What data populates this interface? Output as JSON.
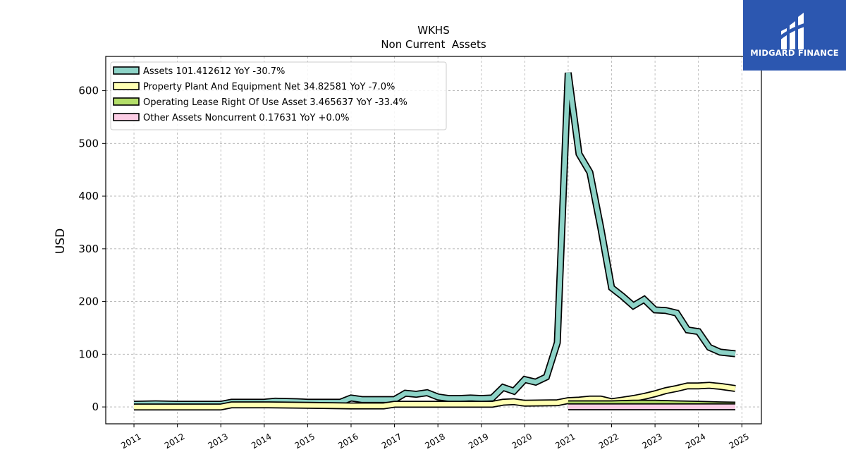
{
  "logo": {
    "text": "MIDGARD FINANCE",
    "background": "#2c57b0"
  },
  "chart_data": {
    "type": "area",
    "title": "WKHS",
    "subtitle": "Non Current  Assets",
    "xlabel": "",
    "ylabel": "USD",
    "xlim": [
      2010.35,
      2025.45
    ],
    "ylim": [
      -32,
      665
    ],
    "x_ticks": [
      "2011",
      "2012",
      "2013",
      "2014",
      "2015",
      "2016",
      "2017",
      "2018",
      "2019",
      "2020",
      "2021",
      "2022",
      "2023",
      "2024",
      "2025"
    ],
    "y_ticks": [
      0,
      100,
      200,
      300,
      400,
      500,
      600
    ],
    "grid": true,
    "legend_position": "top-left",
    "series": [
      {
        "name": "Assets  101.412612 YoY -30.7%",
        "color": "#8dd3c7",
        "points": [
          [
            2011.0,
            5
          ],
          [
            2011.5,
            6
          ],
          [
            2012.0,
            5
          ],
          [
            2012.5,
            5
          ],
          [
            2013.0,
            5
          ],
          [
            2013.25,
            9
          ],
          [
            2013.75,
            9
          ],
          [
            2014.0,
            9
          ],
          [
            2014.25,
            11
          ],
          [
            2014.75,
            10
          ],
          [
            2015.0,
            9
          ],
          [
            2015.5,
            9
          ],
          [
            2015.75,
            9
          ],
          [
            2016.0,
            17
          ],
          [
            2016.25,
            14
          ],
          [
            2016.75,
            14
          ],
          [
            2017.0,
            14
          ],
          [
            2017.25,
            26
          ],
          [
            2017.5,
            24
          ],
          [
            2017.75,
            27
          ],
          [
            2018.0,
            19
          ],
          [
            2018.25,
            16
          ],
          [
            2018.5,
            16
          ],
          [
            2018.75,
            17
          ],
          [
            2019.0,
            16
          ],
          [
            2019.25,
            17
          ],
          [
            2019.5,
            37
          ],
          [
            2019.75,
            30
          ],
          [
            2020.0,
            52
          ],
          [
            2020.25,
            47
          ],
          [
            2020.5,
            57
          ],
          [
            2020.75,
            122
          ],
          [
            2021.0,
            634
          ],
          [
            2021.25,
            480
          ],
          [
            2021.5,
            445
          ],
          [
            2021.75,
            340
          ],
          [
            2022.0,
            226
          ],
          [
            2022.25,
            210
          ],
          [
            2022.5,
            192
          ],
          [
            2022.75,
            204
          ],
          [
            2023.0,
            184
          ],
          [
            2023.25,
            183
          ],
          [
            2023.5,
            178
          ],
          [
            2023.75,
            146
          ],
          [
            2024.0,
            143
          ],
          [
            2024.25,
            113
          ],
          [
            2024.5,
            104
          ],
          [
            2024.85,
            101
          ]
        ]
      },
      {
        "name": "Property Plant And Equipment Net  34.82581 YoY -7.0%",
        "color": "#ffffb3",
        "points": [
          [
            2011.0,
            0
          ],
          [
            2013.0,
            0
          ],
          [
            2013.25,
            4
          ],
          [
            2014.0,
            4
          ],
          [
            2015.0,
            3
          ],
          [
            2016.0,
            2
          ],
          [
            2016.75,
            2
          ],
          [
            2017.0,
            5
          ],
          [
            2018.0,
            5
          ],
          [
            2019.0,
            5
          ],
          [
            2019.25,
            5
          ],
          [
            2019.5,
            9
          ],
          [
            2019.75,
            10
          ],
          [
            2020.0,
            7
          ],
          [
            2020.75,
            8
          ],
          [
            2021.0,
            12
          ],
          [
            2021.25,
            13
          ],
          [
            2021.5,
            15
          ],
          [
            2021.75,
            15
          ],
          [
            2022.0,
            10
          ],
          [
            2022.25,
            13
          ],
          [
            2022.5,
            16
          ],
          [
            2022.75,
            20
          ],
          [
            2023.0,
            25
          ],
          [
            2023.25,
            31
          ],
          [
            2023.5,
            35
          ],
          [
            2023.75,
            40
          ],
          [
            2024.0,
            40
          ],
          [
            2024.25,
            41
          ],
          [
            2024.5,
            39
          ],
          [
            2024.85,
            35
          ]
        ]
      },
      {
        "name": "Operating Lease Right Of Use Asset  3.465637 YoY -33.4%",
        "color": "#b3de69",
        "points": [
          [
            2021.0,
            6
          ],
          [
            2021.5,
            6
          ],
          [
            2022.0,
            6
          ],
          [
            2022.5,
            7
          ],
          [
            2023.0,
            7
          ],
          [
            2023.5,
            6
          ],
          [
            2024.0,
            5
          ],
          [
            2024.5,
            4
          ],
          [
            2024.85,
            3.5
          ]
        ]
      },
      {
        "name": "Other Assets Noncurrent  0.17631 YoY +0.0%",
        "color": "#fccde5",
        "points": [
          [
            2021.0,
            0.2
          ],
          [
            2022.0,
            0.2
          ],
          [
            2023.0,
            0.2
          ],
          [
            2024.0,
            0.2
          ],
          [
            2024.85,
            0.18
          ]
        ]
      }
    ]
  }
}
